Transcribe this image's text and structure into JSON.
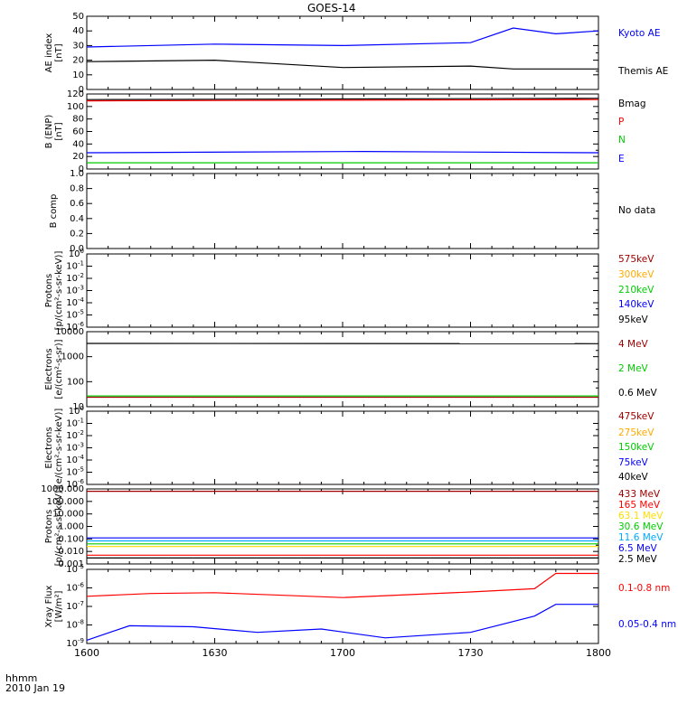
{
  "title": "GOES-14",
  "footer": {
    "line1": "hhmm",
    "line2": "2010 Jan 19"
  },
  "x_ticks": [
    "1600",
    "1630",
    "1700",
    "1730",
    "1800"
  ],
  "chart_data": [
    {
      "type": "line",
      "ylabel": "AE index\n[nT]",
      "ylim": [
        0,
        50
      ],
      "yticks": [
        "0",
        "10",
        "20",
        "30",
        "40",
        "50"
      ],
      "xlim": [
        "16:00",
        "18:00"
      ],
      "series": [
        {
          "name": "Kyoto AE",
          "color": "#0000ff",
          "x": [
            "16:00",
            "16:30",
            "17:00",
            "17:30",
            "17:40",
            "17:50",
            "18:00"
          ],
          "y": [
            29,
            31,
            30,
            32,
            42,
            38,
            40
          ]
        },
        {
          "name": "Themis AE",
          "color": "#000000",
          "x": [
            "16:00",
            "16:30",
            "17:00",
            "17:30",
            "17:40",
            "17:50",
            "18:00"
          ],
          "y": [
            19,
            20,
            15,
            16,
            14,
            14,
            14
          ]
        }
      ]
    },
    {
      "type": "line",
      "ylabel": "B (ENP)\n[nT]",
      "ylim": [
        0,
        120
      ],
      "yticks": [
        "0",
        "20",
        "40",
        "60",
        "80",
        "100",
        "120"
      ],
      "xlim": [
        "16:00",
        "18:00"
      ],
      "series": [
        {
          "name": "Bmag",
          "color": "#000000",
          "x": [
            "16:00",
            "18:00"
          ],
          "y": [
            111,
            113
          ]
        },
        {
          "name": "P",
          "color": "#ff0000",
          "x": [
            "16:00",
            "18:00"
          ],
          "y": [
            109,
            111
          ]
        },
        {
          "name": "N",
          "color": "#00cc00",
          "x": [
            "16:00",
            "18:00"
          ],
          "y": [
            10,
            10
          ]
        },
        {
          "name": "E",
          "color": "#0000ff",
          "x": [
            "16:00",
            "17:05",
            "18:00"
          ],
          "y": [
            26,
            28,
            26
          ]
        }
      ]
    },
    {
      "type": "line",
      "ylabel": "B comp",
      "ylim": [
        0,
        1
      ],
      "yticks": [
        "0.0",
        "0.2",
        "0.4",
        "0.6",
        "0.8",
        "1.0"
      ],
      "note": "No data",
      "series": []
    },
    {
      "type": "line",
      "ylabel": "Protons\n[p/(cm²-s-sr-keV)]",
      "ylog": true,
      "ylim": [
        1e-06,
        1
      ],
      "yticks": [
        "10^-6",
        "10^-5",
        "10^-4",
        "10^-3",
        "10^-2",
        "10^-1",
        "10^0"
      ],
      "series": [
        {
          "name": "575keV",
          "color": "#a00000",
          "x": [],
          "y": []
        },
        {
          "name": "300keV",
          "color": "#ffaa00",
          "x": [],
          "y": []
        },
        {
          "name": "210keV",
          "color": "#00cc00",
          "x": [],
          "y": []
        },
        {
          "name": "140keV",
          "color": "#0000ff",
          "x": [],
          "y": []
        },
        {
          "name": "95keV",
          "color": "#000000",
          "x": [],
          "y": []
        }
      ]
    },
    {
      "type": "line",
      "ylabel": "Electrons\n[e/(cm²-s-sr)]",
      "ylog": true,
      "ylim": [
        10,
        10000
      ],
      "yticks": [
        "10",
        "100",
        "1000",
        "10000"
      ],
      "series": [
        {
          "name": "4 MeV",
          "color": "#a00000",
          "x": [
            "16:00",
            "18:00"
          ],
          "y": [
            24,
            24
          ]
        },
        {
          "name": "2 MeV",
          "color": "#00cc00",
          "x": [
            "16:00",
            "18:00"
          ],
          "y": [
            27,
            27
          ]
        },
        {
          "name": "0.6 MeV",
          "color": "#000000",
          "x": [
            "16:00",
            "18:00"
          ],
          "y": [
            3400,
            3300
          ]
        }
      ]
    },
    {
      "type": "line",
      "ylabel": "Electrons\n[e/(cm²-s-sr-keV)]",
      "ylog": true,
      "ylim": [
        1e-06,
        1
      ],
      "yticks": [
        "10^-6",
        "10^-5",
        "10^-4",
        "10^-3",
        "10^-2",
        "10^-1",
        "10^0"
      ],
      "series": [
        {
          "name": "475keV",
          "color": "#a00000",
          "x": [],
          "y": []
        },
        {
          "name": "275keV",
          "color": "#ffaa00",
          "x": [],
          "y": []
        },
        {
          "name": "150keV",
          "color": "#00cc00",
          "x": [],
          "y": []
        },
        {
          "name": "75keV",
          "color": "#0000ff",
          "x": [],
          "y": []
        },
        {
          "name": "40keV",
          "color": "#000000",
          "x": [],
          "y": []
        }
      ]
    },
    {
      "type": "line",
      "ylabel": "Protons\n[p/(cm²-s-sr-keV)]",
      "ylog": true,
      "ylim": [
        0.001,
        1000
      ],
      "yticks": [
        "0.001",
        "0.010",
        "0.100",
        "1.000",
        "10.000",
        "100.000",
        "1000.000"
      ],
      "series": [
        {
          "name": "433 MeV",
          "color": "#a00000",
          "x": [
            "16:00",
            "18:00"
          ],
          "y": [
            650,
            650
          ]
        },
        {
          "name": "165 MeV",
          "color": "#ff0000",
          "x": [
            "16:00",
            "18:00"
          ],
          "y": [
            0.005,
            0.005
          ]
        },
        {
          "name": "63.1 MeV",
          "color": "#ffdd00",
          "x": [
            "16:00",
            "18:00"
          ],
          "y": [
            0.025,
            0.025
          ]
        },
        {
          "name": "30.6 MeV",
          "color": "#00cc00",
          "x": [
            "16:00",
            "18:00"
          ],
          "y": [
            0.04,
            0.04
          ]
        },
        {
          "name": "11.6 MeV",
          "color": "#00aaff",
          "x": [
            "16:00",
            "18:00"
          ],
          "y": [
            0.07,
            0.07
          ]
        },
        {
          "name": "6.5 MeV",
          "color": "#0000ff",
          "x": [
            "16:00",
            "18:00"
          ],
          "y": [
            0.12,
            0.12
          ]
        },
        {
          "name": "2.5 MeV",
          "color": "#000000",
          "x": [
            "16:00",
            "18:00"
          ],
          "y": [
            0.003,
            0.003
          ]
        }
      ]
    },
    {
      "type": "line",
      "ylabel": "Xray Flux\n[W/m²]",
      "ylog": true,
      "ylim": [
        1e-09,
        1e-05
      ],
      "yticks": [
        "10^-9",
        "10^-8",
        "10^-7",
        "10^-6",
        "10^-5"
      ],
      "series": [
        {
          "name": "0.1-0.8 nm",
          "color": "#ff0000",
          "x": [
            "16:00",
            "16:15",
            "16:30",
            "17:00",
            "17:30",
            "17:45",
            "17:50",
            "17:55",
            "18:00"
          ],
          "y": [
            3.5e-07,
            5e-07,
            5.5e-07,
            3e-07,
            6e-07,
            9e-07,
            6e-06,
            6e-06,
            6e-06
          ]
        },
        {
          "name": "0.05-0.4 nm",
          "color": "#0000ff",
          "x": [
            "16:00",
            "16:10",
            "16:25",
            "16:40",
            "16:55",
            "17:10",
            "17:30",
            "17:45",
            "17:50",
            "17:55",
            "18:00"
          ],
          "y": [
            1.5e-09,
            9e-09,
            8e-09,
            4e-09,
            6e-09,
            2e-09,
            4e-09,
            3e-08,
            1.3e-07,
            1.3e-07,
            1.3e-07
          ]
        }
      ]
    }
  ]
}
